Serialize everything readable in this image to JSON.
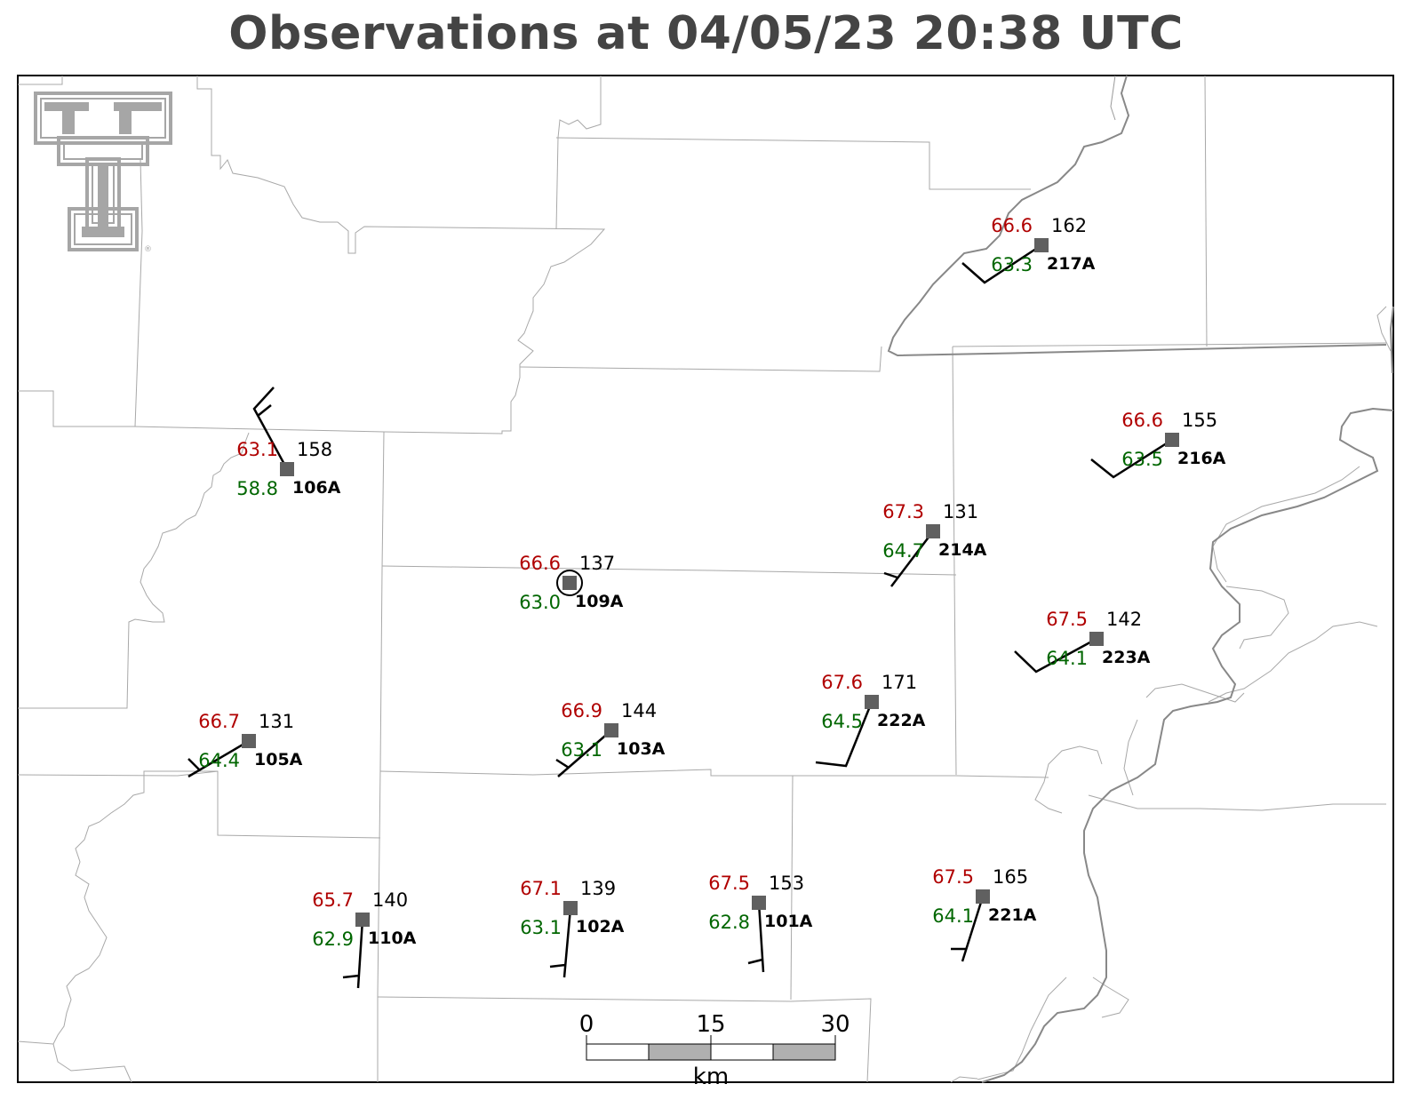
{
  "title": "Observations at 04/05/23 20:38 UTC",
  "logo": {
    "type": "double-t-logo",
    "mark": "®"
  },
  "colors": {
    "temperature": "#b00000",
    "dewpoint": "#006600",
    "station": "#606060",
    "title": "#444444"
  },
  "stations": [
    {
      "id": "217A",
      "temp": "66.6",
      "dew": "63.3",
      "pres": "162"
    },
    {
      "id": "106A",
      "temp": "63.1",
      "dew": "58.8",
      "pres": "158"
    },
    {
      "id": "216A",
      "temp": "66.6",
      "dew": "63.5",
      "pres": "155"
    },
    {
      "id": "214A",
      "temp": "67.3",
      "dew": "64.7",
      "pres": "131"
    },
    {
      "id": "109A",
      "temp": "66.6",
      "dew": "63.0",
      "pres": "137",
      "calm": true
    },
    {
      "id": "223A",
      "temp": "67.5",
      "dew": "64.1",
      "pres": "142"
    },
    {
      "id": "222A",
      "temp": "67.6",
      "dew": "64.5",
      "pres": "171"
    },
    {
      "id": "105A",
      "temp": "66.7",
      "dew": "64.4",
      "pres": "131"
    },
    {
      "id": "103A",
      "temp": "66.9",
      "dew": "63.1",
      "pres": "144"
    },
    {
      "id": "110A",
      "temp": "65.7",
      "dew": "62.9",
      "pres": "140"
    },
    {
      "id": "102A",
      "temp": "67.1",
      "dew": "63.1",
      "pres": "139"
    },
    {
      "id": "101A",
      "temp": "67.5",
      "dew": "62.8",
      "pres": "153"
    },
    {
      "id": "221A",
      "temp": "67.5",
      "dew": "64.1",
      "pres": "165"
    }
  ],
  "scale_bar": {
    "ticks": [
      "0",
      "15",
      "30"
    ],
    "unit": "km"
  }
}
